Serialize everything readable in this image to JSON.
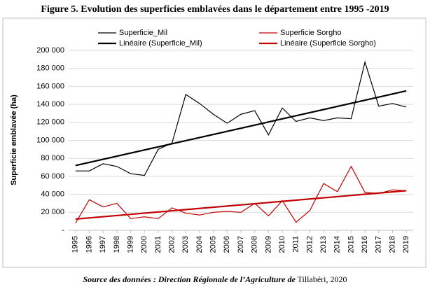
{
  "chart_data": {
    "type": "line",
    "title": "Figure 5. Evolution des superficies emblavées dans le département entre 1995 -2019",
    "ylabel": "Superficie emblavée (ha)",
    "source": "Source des données : Direction Régionale de l’Agriculture de",
    "source_place": "Tillabéri, 2020",
    "x": [
      1995,
      1996,
      1997,
      1998,
      1999,
      2000,
      2001,
      2002,
      2003,
      2004,
      2005,
      2006,
      2007,
      2008,
      2009,
      2010,
      2011,
      2012,
      2013,
      2014,
      2015,
      2016,
      2017,
      2018,
      2019
    ],
    "xlim": [
      1994.5,
      2019.5
    ],
    "xticks": [
      1995,
      1996,
      1997,
      1998,
      1999,
      2000,
      2001,
      2002,
      2003,
      2004,
      2005,
      2006,
      2007,
      2008,
      2009,
      2010,
      2011,
      2012,
      2013,
      2014,
      2015,
      2016,
      2017,
      2018,
      2019
    ],
    "ylim": [
      0,
      200000
    ],
    "yticks": [
      {
        "value": 0,
        "label": "-"
      },
      {
        "value": 20000,
        "label": "20 000"
      },
      {
        "value": 40000,
        "label": "40 000"
      },
      {
        "value": 60000,
        "label": "60 000"
      },
      {
        "value": 80000,
        "label": "80 000"
      },
      {
        "value": 100000,
        "label": "100 000"
      },
      {
        "value": 120000,
        "label": "120 000"
      },
      {
        "value": 140000,
        "label": "140 000"
      },
      {
        "value": 160000,
        "label": "160 000"
      },
      {
        "value": 180000,
        "label": "180 000"
      },
      {
        "value": 200000,
        "label": "200 000"
      }
    ],
    "grid": true,
    "series": [
      {
        "name": "Superficie_Mil",
        "color": "#000000",
        "values": [
          66000,
          66000,
          74000,
          71000,
          63000,
          61000,
          90000,
          97000,
          151000,
          141000,
          129000,
          119000,
          129000,
          133000,
          106000,
          136000,
          121000,
          125000,
          122000,
          125000,
          124000,
          187000,
          138000,
          141000,
          137000
        ]
      },
      {
        "name": "Superficie Sorgho",
        "color": "#c00000",
        "values": [
          8000,
          34000,
          26000,
          30000,
          13000,
          15000,
          13000,
          25000,
          19000,
          17000,
          20000,
          21000,
          20000,
          30000,
          16000,
          33000,
          9000,
          22000,
          52000,
          43000,
          71000,
          42000,
          41000,
          45000,
          44000
        ]
      },
      {
        "name": "Linéaire (Superficie_Mil)",
        "color": "#000000",
        "x": [
          1995,
          2019
        ],
        "values": [
          72000,
          155000
        ]
      },
      {
        "name": "Linéaire (Superficie Sorgho)",
        "color": "#c00000",
        "x": [
          1995,
          2019
        ],
        "values": [
          12500,
          44000
        ]
      }
    ]
  }
}
